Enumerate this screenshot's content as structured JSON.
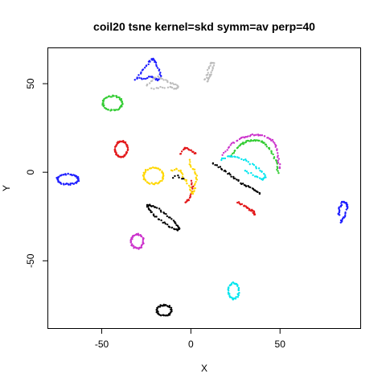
{
  "chart_data": {
    "type": "scatter",
    "title": "coil20 tsne kernel=skd symm=av perp=40",
    "xlabel": "X",
    "ylabel": "Y",
    "xlim": [
      -80,
      95
    ],
    "ylim": [
      -88,
      70
    ],
    "xticks": [
      -50,
      0,
      50
    ],
    "yticks": [
      -50,
      0,
      50
    ],
    "grid": false,
    "legend": "none",
    "series": [
      {
        "color": "#e31a1c",
        "shape": "ring",
        "cx": -39,
        "cy": 13,
        "rx": 3.5,
        "ry": 4.5,
        "n": 60
      },
      {
        "color": "#e31a1c",
        "shape": "arc",
        "x": [
          -6,
          -4,
          -3,
          -1,
          0,
          2,
          3
        ],
        "y": [
          10,
          13,
          14,
          13,
          12,
          11,
          11
        ],
        "n": 22
      },
      {
        "color": "#e31a1c",
        "shape": "arc",
        "x": [
          0,
          1,
          1,
          0,
          -1,
          -2,
          -3
        ],
        "y": [
          -5,
          -8,
          -11,
          -13,
          -15,
          -16,
          -17
        ],
        "n": 20
      },
      {
        "color": "#e31a1c",
        "shape": "arc",
        "x": [
          26,
          28,
          30,
          31,
          33,
          35,
          36,
          35,
          33
        ],
        "y": [
          -17,
          -18,
          -19,
          -20,
          -21,
          -22,
          -24,
          -23,
          -21
        ],
        "n": 30
      },
      {
        "color": "#1f1fff",
        "shape": "ring",
        "cx": -69,
        "cy": -4,
        "rx": 6,
        "ry": 2.8,
        "n": 55
      },
      {
        "color": "#1f1fff",
        "shape": "arc",
        "x": [
          -31,
          -28,
          -25,
          -23,
          -21,
          -20,
          -18,
          -17,
          -18,
          -20,
          -22,
          -26,
          -30
        ],
        "y": [
          52,
          56,
          60,
          63,
          64,
          62,
          58,
          54,
          52,
          53,
          54,
          53,
          53
        ],
        "n": 55
      },
      {
        "color": "#1f1fff",
        "shape": "arc",
        "x": [
          84,
          86,
          88,
          87,
          85,
          83,
          83
        ],
        "y": [
          -28,
          -25,
          -20,
          -17,
          -17,
          -21,
          -24
        ],
        "n": 40
      },
      {
        "color": "#33cc33",
        "shape": "ring",
        "cx": -44,
        "cy": 39,
        "rx": 5.5,
        "ry": 4,
        "n": 55
      },
      {
        "color": "#33cc33",
        "shape": "arc",
        "x": [
          22,
          26,
          30,
          34,
          38,
          42,
          45,
          48,
          49
        ],
        "y": [
          9,
          14,
          17,
          18,
          18,
          16,
          12,
          6,
          0
        ],
        "n": 55
      },
      {
        "color": "#cc33cc",
        "shape": "ring",
        "cx": -30,
        "cy": -39,
        "rx": 3.5,
        "ry": 4,
        "n": 45
      },
      {
        "color": "#cc33cc",
        "shape": "arc",
        "x": [
          18,
          22,
          26,
          30,
          34,
          38,
          42,
          46,
          48,
          49,
          50
        ],
        "y": [
          10,
          15,
          18,
          20,
          21,
          21,
          20,
          18,
          14,
          8,
          2
        ],
        "n": 55
      },
      {
        "color": "#ffd700",
        "shape": "ring",
        "cx": -21,
        "cy": -2,
        "rx": 5.5,
        "ry": 4.5,
        "n": 50
      },
      {
        "color": "#ffd700",
        "shape": "arc",
        "x": [
          -1,
          0,
          2,
          3,
          3,
          2,
          1,
          0,
          -2,
          -4,
          -5,
          -8,
          -11
        ],
        "y": [
          7,
          3,
          1,
          -2,
          -5,
          -9,
          -12,
          -10,
          -6,
          -3,
          0,
          2,
          1
        ],
        "n": 45
      },
      {
        "color": "#00e5ee",
        "shape": "ring",
        "cx": 24,
        "cy": -67,
        "rx": 3,
        "ry": 4.5,
        "n": 40
      },
      {
        "color": "#00e5ee",
        "shape": "arc",
        "x": [
          17,
          21,
          25,
          30,
          35,
          39,
          42,
          40,
          36,
          30
        ],
        "y": [
          7,
          9,
          9,
          7,
          4,
          1,
          -3,
          -4,
          -2,
          1
        ],
        "n": 45
      },
      {
        "color": "#bdbdbd",
        "shape": "arc",
        "x": [
          8,
          9,
          10,
          11,
          13,
          12,
          11,
          10,
          9
        ],
        "y": [
          52,
          55,
          59,
          62,
          62,
          58,
          55,
          53,
          51
        ],
        "n": 30
      },
      {
        "color": "#bdbdbd",
        "shape": "arc",
        "x": [
          -25,
          -22,
          -19,
          -16,
          -13,
          -10,
          -7,
          -9,
          -12,
          -17,
          -22
        ],
        "y": [
          49,
          52,
          54,
          53,
          51,
          50,
          48,
          47,
          48,
          48,
          47
        ],
        "n": 40
      },
      {
        "color": "#000000",
        "shape": "ring",
        "cx": -15.5,
        "cy": -25.5,
        "rx": 11,
        "ry": 2.3,
        "rot": -38,
        "n": 65
      },
      {
        "color": "#000000",
        "shape": "ring",
        "cx": -15,
        "cy": -78,
        "rx": 4,
        "ry": 3,
        "n": 45
      },
      {
        "color": "#000000",
        "shape": "arc",
        "x": [
          12,
          16,
          20,
          24,
          28,
          32,
          36,
          39
        ],
        "y": [
          5,
          3,
          0,
          -3,
          -6,
          -8,
          -10,
          -12
        ],
        "n": 40
      },
      {
        "color": "#000000",
        "shape": "arc",
        "x": [
          -10,
          -8,
          -6,
          -4
        ],
        "y": [
          -3,
          -2,
          -3,
          -4
        ],
        "n": 6
      }
    ]
  }
}
